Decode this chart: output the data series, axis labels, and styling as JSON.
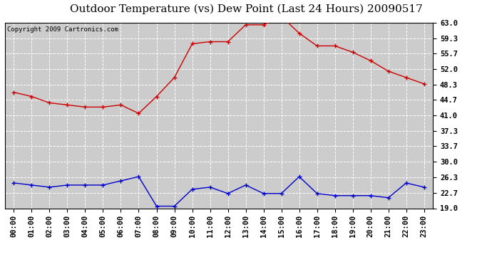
{
  "title": "Outdoor Temperature (vs) Dew Point (Last 24 Hours) 20090517",
  "copyright": "Copyright 2009 Cartronics.com",
  "hours": [
    "00:00",
    "01:00",
    "02:00",
    "03:00",
    "04:00",
    "05:00",
    "06:00",
    "07:00",
    "08:00",
    "09:00",
    "10:00",
    "11:00",
    "12:00",
    "13:00",
    "14:00",
    "15:00",
    "16:00",
    "17:00",
    "18:00",
    "19:00",
    "20:00",
    "21:00",
    "22:00",
    "23:00"
  ],
  "temp": [
    46.5,
    45.5,
    44.0,
    43.5,
    43.0,
    43.0,
    43.5,
    41.5,
    45.5,
    50.0,
    58.0,
    58.5,
    58.5,
    62.5,
    62.5,
    64.5,
    60.5,
    57.5,
    57.5,
    56.0,
    54.0,
    51.5,
    50.0,
    48.5
  ],
  "dew": [
    25.0,
    24.5,
    24.0,
    24.5,
    24.5,
    24.5,
    25.5,
    26.5,
    19.5,
    19.5,
    23.5,
    24.0,
    22.5,
    24.5,
    22.5,
    22.5,
    26.5,
    22.5,
    22.0,
    22.0,
    22.0,
    21.5,
    25.0,
    24.0
  ],
  "temp_color": "#cc0000",
  "dew_color": "#0000cc",
  "fig_bg_color": "#ffffff",
  "plot_bg": "#cccccc",
  "yticks": [
    19.0,
    22.7,
    26.3,
    30.0,
    33.7,
    37.3,
    41.0,
    44.7,
    48.3,
    52.0,
    55.7,
    59.3,
    63.0
  ],
  "ymin": 19.0,
  "ymax": 63.0,
  "grid_color": "#ffffff",
  "title_fontsize": 11,
  "axis_fontsize": 7.5,
  "copyright_fontsize": 6.5
}
